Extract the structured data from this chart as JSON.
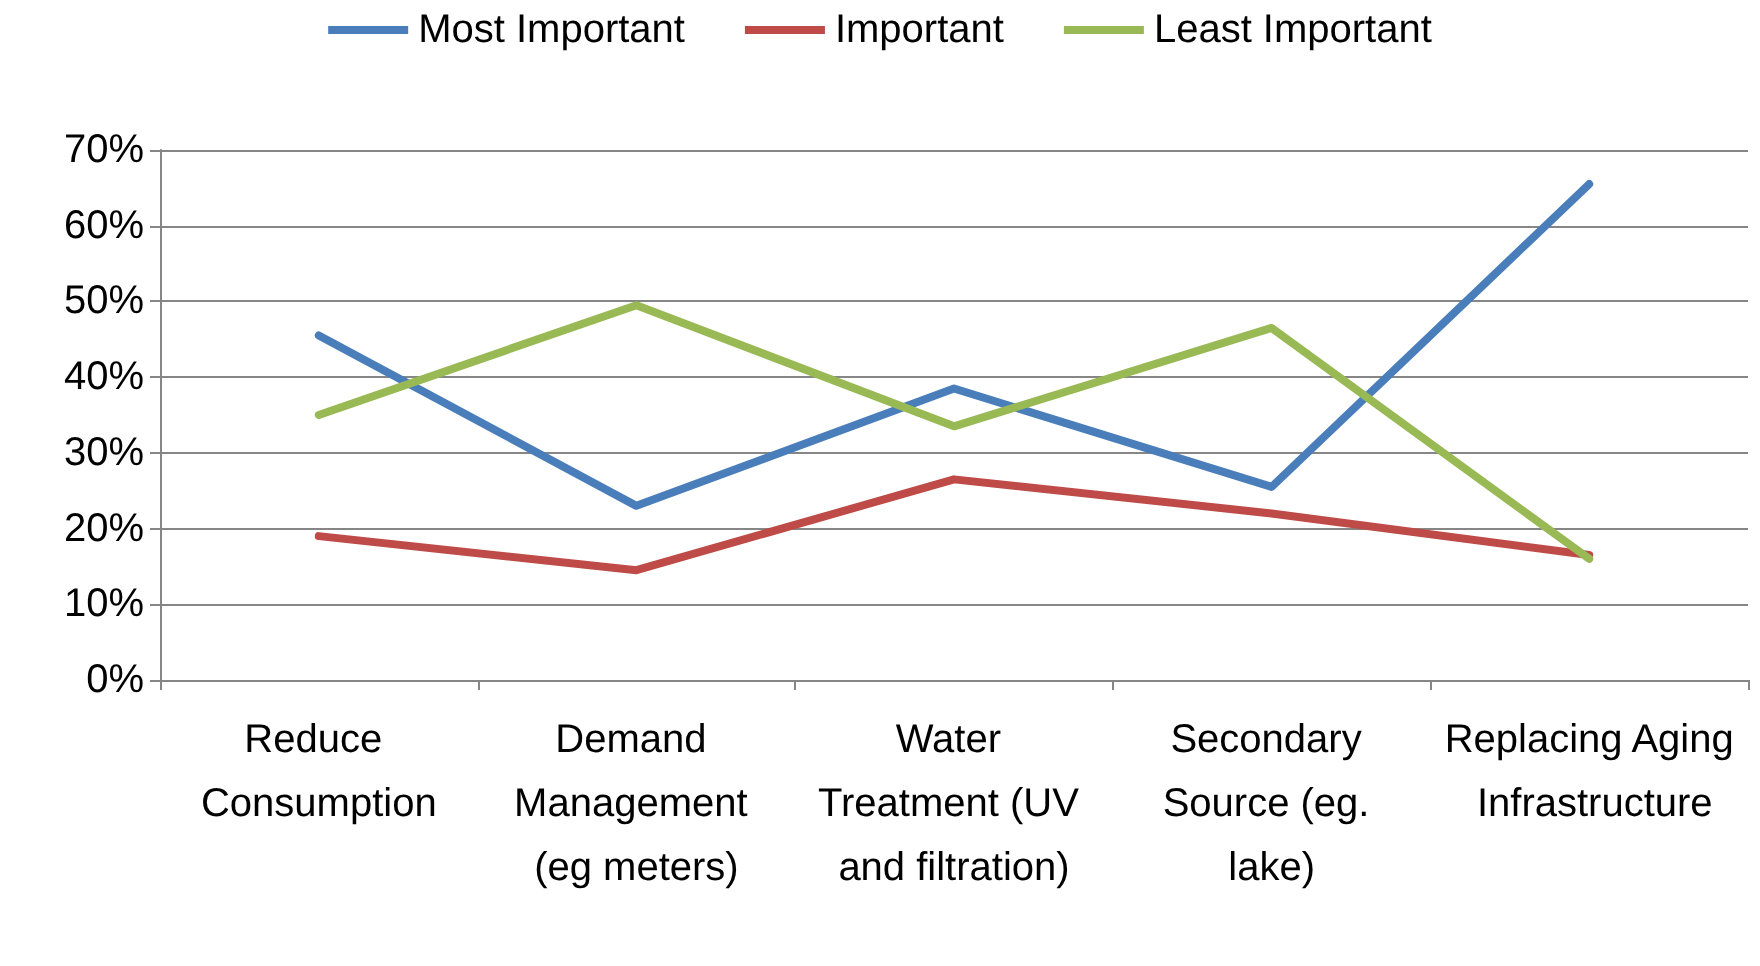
{
  "chart_data": {
    "type": "line",
    "categories": [
      "Reduce Consumption",
      "Demand Management (eg meters)",
      "Water Treatment (UV and filtration)",
      "Secondary Source (eg. lake)",
      "Replacing Aging Infrastructure"
    ],
    "series": [
      {
        "name": "Most Important",
        "color": "#4a7ebb",
        "values": [
          45.5,
          23,
          38.5,
          25.5,
          65.5
        ]
      },
      {
        "name": "Important",
        "color": "#be4b48",
        "values": [
          19,
          14.5,
          26.5,
          22,
          16.5
        ]
      },
      {
        "name": "Least Important",
        "color": "#98b954",
        "values": [
          35,
          49.5,
          33.5,
          46.5,
          16
        ]
      }
    ],
    "ylim": [
      0,
      70
    ],
    "yticks": [
      {
        "value": 0,
        "label": "0%"
      },
      {
        "value": 10,
        "label": "10%"
      },
      {
        "value": 20,
        "label": "20%"
      },
      {
        "value": 30,
        "label": "30%"
      },
      {
        "value": 40,
        "label": "40%"
      },
      {
        "value": 50,
        "label": "50%"
      },
      {
        "value": 60,
        "label": "60%"
      },
      {
        "value": 70,
        "label": "70%"
      }
    ],
    "grid": "y",
    "legend": "top",
    "marker": "none",
    "line_style": "solid"
  }
}
